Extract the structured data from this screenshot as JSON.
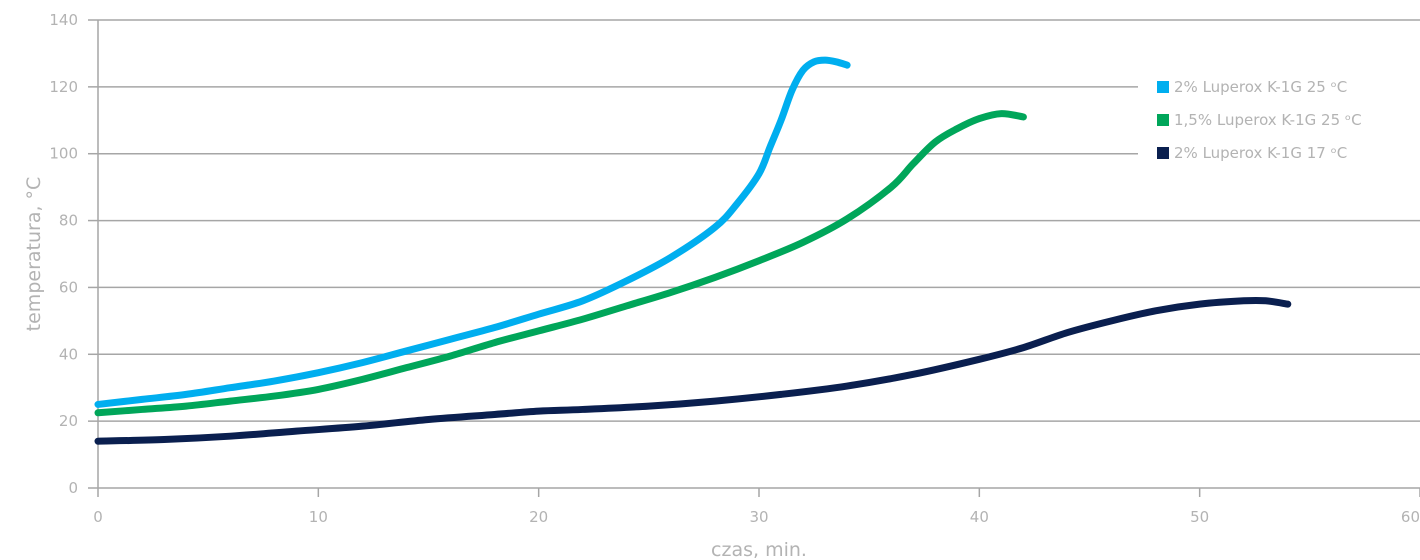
{
  "chart_data": {
    "type": "line",
    "xlabel": "czas, min.",
    "ylabel": "temperatura, °C",
    "xlim": [
      0,
      60
    ],
    "ylim": [
      0,
      140
    ],
    "xticks": [
      0,
      10,
      20,
      30,
      40,
      50,
      60
    ],
    "yticks": [
      0,
      20,
      40,
      60,
      80,
      100,
      120,
      140
    ],
    "grid": "horizontal",
    "legend_position": "top-right",
    "series": [
      {
        "name": "2% Luperox K-1G 25 ᵒC",
        "color": "#00aeef",
        "points": [
          [
            0,
            25
          ],
          [
            2,
            26.5
          ],
          [
            4,
            28
          ],
          [
            6,
            30
          ],
          [
            8,
            32
          ],
          [
            10,
            34.5
          ],
          [
            12,
            37.5
          ],
          [
            14,
            41
          ],
          [
            16,
            44.5
          ],
          [
            18,
            48
          ],
          [
            20,
            52
          ],
          [
            22,
            56
          ],
          [
            24,
            62
          ],
          [
            26,
            69
          ],
          [
            28,
            78
          ],
          [
            29,
            85
          ],
          [
            30,
            94
          ],
          [
            30.5,
            102
          ],
          [
            31,
            110
          ],
          [
            31.5,
            119
          ],
          [
            32,
            125
          ],
          [
            32.5,
            127.5
          ],
          [
            33,
            128
          ],
          [
            33.5,
            127.5
          ],
          [
            34,
            126.5
          ]
        ]
      },
      {
        "name": "1,5% Luperox K-1G 25 ᵒC",
        "color": "#00a65a",
        "points": [
          [
            0,
            22.5
          ],
          [
            2,
            23.5
          ],
          [
            4,
            24.5
          ],
          [
            6,
            26
          ],
          [
            8,
            27.5
          ],
          [
            10,
            29.5
          ],
          [
            12,
            32.5
          ],
          [
            14,
            36
          ],
          [
            16,
            39.5
          ],
          [
            18,
            43.5
          ],
          [
            20,
            47
          ],
          [
            22,
            50.5
          ],
          [
            24,
            54.5
          ],
          [
            26,
            58.5
          ],
          [
            28,
            63
          ],
          [
            30,
            68
          ],
          [
            32,
            73.5
          ],
          [
            34,
            80.5
          ],
          [
            36,
            90
          ],
          [
            37,
            97
          ],
          [
            38,
            103.5
          ],
          [
            39,
            107.5
          ],
          [
            40,
            110.5
          ],
          [
            41,
            112
          ],
          [
            42,
            111
          ]
        ]
      },
      {
        "name": "2% Luperox K-1G 17 ᵒC",
        "color": "#0a1f4f",
        "points": [
          [
            0,
            14
          ],
          [
            3,
            14.5
          ],
          [
            6,
            15.5
          ],
          [
            9,
            17
          ],
          [
            12,
            18.5
          ],
          [
            15,
            20.5
          ],
          [
            18,
            22
          ],
          [
            20,
            23
          ],
          [
            22,
            23.5
          ],
          [
            25,
            24.5
          ],
          [
            28,
            26
          ],
          [
            31,
            28
          ],
          [
            34,
            30.5
          ],
          [
            37,
            34
          ],
          [
            40,
            38.5
          ],
          [
            42,
            42
          ],
          [
            44,
            46.5
          ],
          [
            46,
            50
          ],
          [
            48,
            53
          ],
          [
            50,
            55
          ],
          [
            52,
            56
          ],
          [
            53,
            56
          ],
          [
            54,
            55
          ]
        ]
      }
    ]
  }
}
